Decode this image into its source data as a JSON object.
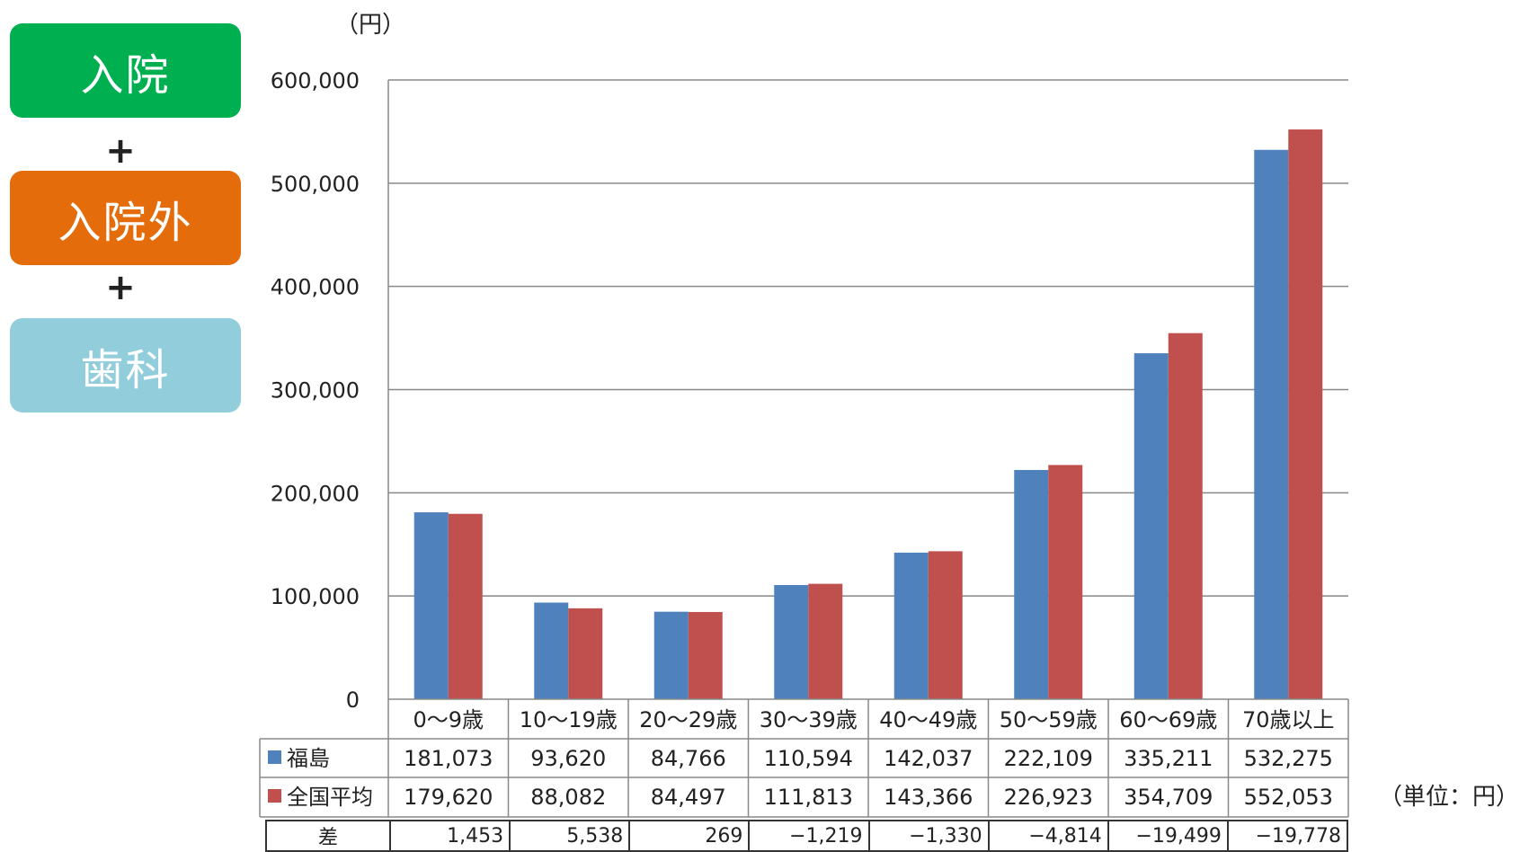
{
  "side_labels": {
    "inpatient": "入院",
    "plus_1": "+",
    "outpatient": "入院外",
    "plus_2": "+",
    "dental": "歯科"
  },
  "colors": {
    "inpatient": "#00b050",
    "outpatient": "#e46c0a",
    "dental": "#92cddc",
    "series_fukushima": "#4f81bd",
    "series_national": "#c0504d"
  },
  "unit_note": "（単位：円）",
  "chart_data": {
    "type": "bar",
    "title": "",
    "y_unit_label": "（円）",
    "xlabel": "",
    "ylabel": "",
    "ylim": [
      0,
      600000
    ],
    "y_ticks": [
      "0",
      "100,000",
      "200,000",
      "300,000",
      "400,000",
      "500,000",
      "600,000"
    ],
    "categories": [
      "0〜9歳",
      "10〜19歳",
      "20〜29歳",
      "30〜39歳",
      "40〜49歳",
      "50〜59歳",
      "60〜69歳",
      "70歳以上"
    ],
    "series": [
      {
        "name": "福島",
        "values": [
          181073,
          93620,
          84766,
          110594,
          142037,
          222109,
          335211,
          532275
        ],
        "labels": [
          "181,073",
          "93,620",
          "84,766",
          "110,594",
          "142,037",
          "222,109",
          "335,211",
          "532,275"
        ]
      },
      {
        "name": "全国平均",
        "values": [
          179620,
          88082,
          84497,
          111813,
          143366,
          226923,
          354709,
          552053
        ],
        "labels": [
          "179,620",
          "88,082",
          "84,497",
          "111,813",
          "143,366",
          "226,923",
          "354,709",
          "552,053"
        ]
      }
    ],
    "legend": "data-table",
    "grid": true,
    "difference_row": {
      "label": "差",
      "values": [
        "1,453",
        "5,538",
        "269",
        "−1,219",
        "−1,330",
        "−4,814",
        "−19,499",
        "−19,778"
      ]
    }
  }
}
